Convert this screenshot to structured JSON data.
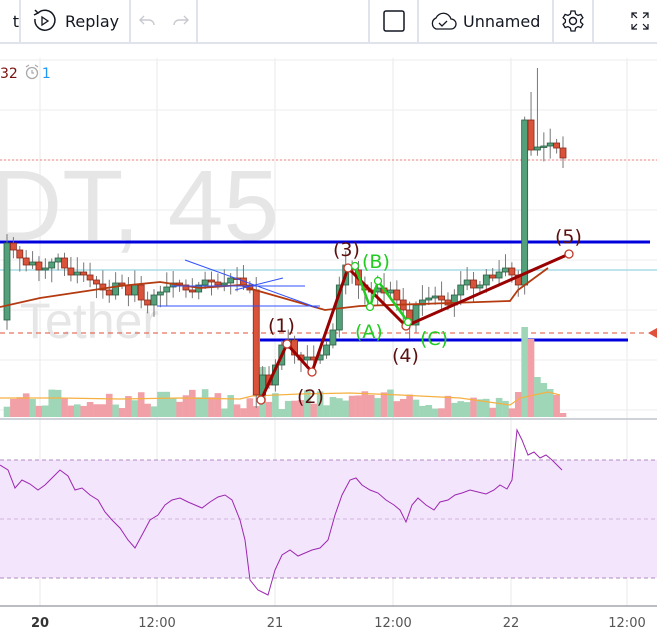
{
  "toolbar": {
    "left_partial_label": "t",
    "replay_label": "Replay",
    "layout_name": "Unnamed",
    "icons": [
      "replay-icon",
      "undo-icon",
      "redo-icon",
      "square-icon",
      "cloud-check-icon",
      "chevron-down-icon",
      "gear-icon",
      "fullscreen-icon"
    ]
  },
  "legend": {
    "value": "32",
    "alert_count": "1"
  },
  "watermark": {
    "symbol": "DT, 45",
    "description": "Tether"
  },
  "wave_labels": {
    "w1": "(1)",
    "w2": "(2)",
    "w3": "(3)",
    "w4": "(4)",
    "w5": "(5)",
    "wa": "(A)",
    "wb": "(B)",
    "wc": "(C)"
  },
  "time_axis": [
    "20",
    "12:00",
    "21",
    "12:00",
    "22",
    "12:00"
  ],
  "colors": {
    "up": "#53a07a",
    "down": "#d9533b",
    "ma": "#b43a10",
    "wave": "#990000",
    "abc": "#22cc22",
    "level": "#0000dd",
    "rsi": "#9c27b0",
    "rsi_band": "#f3e5fc"
  }
}
